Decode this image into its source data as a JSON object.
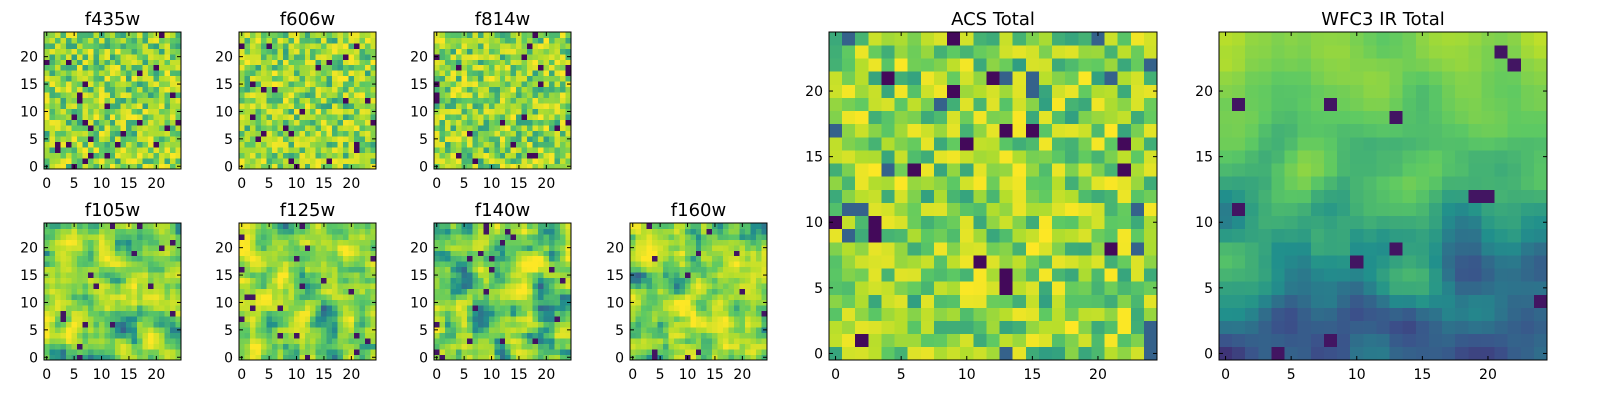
{
  "chart_data": [
    {
      "type": "heatmap",
      "title": "f435w",
      "grid_size": 25,
      "xticks": [
        "0",
        "5",
        "10",
        "15",
        "20"
      ],
      "yticks": [
        "0",
        "5",
        "10",
        "15",
        "20"
      ],
      "xlim": [
        -0.5,
        24.5
      ],
      "ylim": [
        -0.5,
        24.5
      ],
      "colormap": "viridis",
      "style": "noisy"
    },
    {
      "type": "heatmap",
      "title": "f606w",
      "grid_size": 25,
      "xticks": [
        "0",
        "5",
        "10",
        "15",
        "20"
      ],
      "yticks": [
        "0",
        "5",
        "10",
        "15",
        "20"
      ],
      "xlim": [
        -0.5,
        24.5
      ],
      "ylim": [
        -0.5,
        24.5
      ],
      "colormap": "viridis",
      "style": "noisy"
    },
    {
      "type": "heatmap",
      "title": "f814w",
      "grid_size": 25,
      "xticks": [
        "0",
        "5",
        "10",
        "15",
        "20"
      ],
      "yticks": [
        "0",
        "5",
        "10",
        "15",
        "20"
      ],
      "xlim": [
        -0.5,
        24.5
      ],
      "ylim": [
        -0.5,
        24.5
      ],
      "colormap": "viridis",
      "style": "noisy"
    },
    {
      "type": "heatmap",
      "title": "f105w",
      "grid_size": 25,
      "xticks": [
        "0",
        "5",
        "10",
        "15",
        "20"
      ],
      "yticks": [
        "0",
        "5",
        "10",
        "15",
        "20"
      ],
      "xlim": [
        -0.5,
        24.5
      ],
      "ylim": [
        -0.5,
        24.5
      ],
      "colormap": "viridis",
      "style": "smooth"
    },
    {
      "type": "heatmap",
      "title": "f125w",
      "grid_size": 25,
      "xticks": [
        "0",
        "5",
        "10",
        "15",
        "20"
      ],
      "yticks": [
        "0",
        "5",
        "10",
        "15",
        "20"
      ],
      "xlim": [
        -0.5,
        24.5
      ],
      "ylim": [
        -0.5,
        24.5
      ],
      "colormap": "viridis",
      "style": "smooth"
    },
    {
      "type": "heatmap",
      "title": "f140w",
      "grid_size": 25,
      "xticks": [
        "0",
        "5",
        "10",
        "15",
        "20"
      ],
      "yticks": [
        "0",
        "5",
        "10",
        "15",
        "20"
      ],
      "xlim": [
        -0.5,
        24.5
      ],
      "ylim": [
        -0.5,
        24.5
      ],
      "colormap": "viridis",
      "style": "smooth"
    },
    {
      "type": "heatmap",
      "title": "f160w",
      "grid_size": 25,
      "xticks": [
        "0",
        "5",
        "10",
        "15",
        "20"
      ],
      "yticks": [
        "0",
        "5",
        "10",
        "15",
        "20"
      ],
      "xlim": [
        -0.5,
        24.5
      ],
      "ylim": [
        -0.5,
        24.5
      ],
      "colormap": "viridis",
      "style": "smooth"
    },
    {
      "type": "heatmap",
      "title": "ACS Total",
      "grid_size": 25,
      "xticks": [
        "0",
        "5",
        "10",
        "15",
        "20"
      ],
      "yticks": [
        "0",
        "5",
        "10",
        "15",
        "20"
      ],
      "xlim": [
        -0.5,
        24.5
      ],
      "ylim": [
        -0.5,
        24.5
      ],
      "colormap": "viridis",
      "style": "noisy-bright"
    },
    {
      "type": "heatmap",
      "title": "WFC3 IR Total",
      "grid_size": 25,
      "xticks": [
        "0",
        "5",
        "10",
        "15",
        "20"
      ],
      "yticks": [
        "0",
        "5",
        "10",
        "15",
        "20"
      ],
      "xlim": [
        -0.5,
        24.5
      ],
      "ylim": [
        -0.5,
        24.5
      ],
      "colormap": "viridis",
      "style": "gradient"
    }
  ],
  "colors": {
    "viridis_stops": [
      "#440154",
      "#3b528b",
      "#21908c",
      "#5dc963",
      "#b5de2b",
      "#fde725"
    ],
    "axes_edge": "#000000",
    "background": "#ffffff"
  }
}
